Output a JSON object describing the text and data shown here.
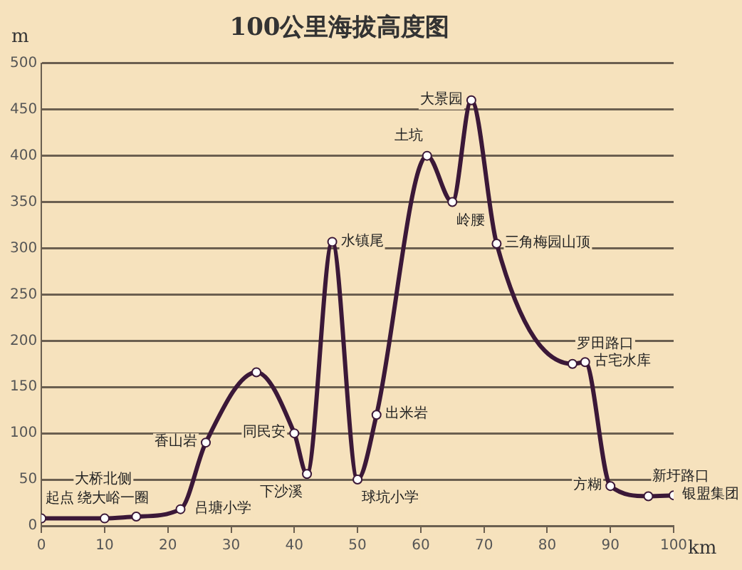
{
  "chart_data": {
    "type": "line",
    "title": "100公里海拔高度图",
    "xlabel": "km",
    "ylabel": "m",
    "x": [
      0,
      10,
      15,
      22,
      26,
      34,
      40,
      42,
      46,
      50,
      53,
      61,
      65,
      68,
      72,
      84,
      86,
      90,
      96,
      100
    ],
    "series": [
      {
        "color": "#3b1838",
        "values": [
          8,
          8,
          10,
          18,
          90,
          166,
          100,
          56,
          307,
          50,
          120,
          400,
          350,
          460,
          305,
          175,
          177,
          43,
          32,
          33
        ]
      }
    ],
    "xlim": [
      0,
      100
    ],
    "xticks": [
      0,
      10,
      20,
      30,
      40,
      50,
      60,
      70,
      80,
      90,
      100
    ],
    "ylim": [
      0,
      500
    ],
    "yticks": [
      0,
      50,
      100,
      150,
      200,
      250,
      300,
      350,
      400,
      450,
      500
    ],
    "grid": "y",
    "marker": "circle",
    "line_style": "solid",
    "legend": false,
    "annotations": [
      {
        "text": "起点",
        "x": 0,
        "y": 8
      },
      {
        "text": "绕大峪一圈",
        "x": 5,
        "y": 8
      },
      {
        "text": "大桥北侧",
        "x": 15,
        "y": 10
      },
      {
        "text": "吕塘小学",
        "x": 22,
        "y": 18
      },
      {
        "text": "香山岩",
        "x": 26,
        "y": 90
      },
      {
        "text": "同民安",
        "x": 40,
        "y": 100
      },
      {
        "text": "下沙溪",
        "x": 42,
        "y": 56
      },
      {
        "text": "水镇尾",
        "x": 46,
        "y": 307
      },
      {
        "text": "球坑小学",
        "x": 50,
        "y": 50
      },
      {
        "text": "出米岩",
        "x": 53,
        "y": 120
      },
      {
        "text": "土坑",
        "x": 61,
        "y": 400
      },
      {
        "text": "岭腰",
        "x": 65,
        "y": 350
      },
      {
        "text": "大景园",
        "x": 68,
        "y": 460
      },
      {
        "text": "三角梅园山顶",
        "x": 72,
        "y": 305
      },
      {
        "text": "罗田路口",
        "x": 84,
        "y": 175
      },
      {
        "text": "古宅水库",
        "x": 86,
        "y": 177
      },
      {
        "text": "方糊",
        "x": 90,
        "y": 43
      },
      {
        "text": "新圩路口",
        "x": 96,
        "y": 32
      },
      {
        "text": "银盟集团",
        "x": 100,
        "y": 33
      }
    ]
  }
}
